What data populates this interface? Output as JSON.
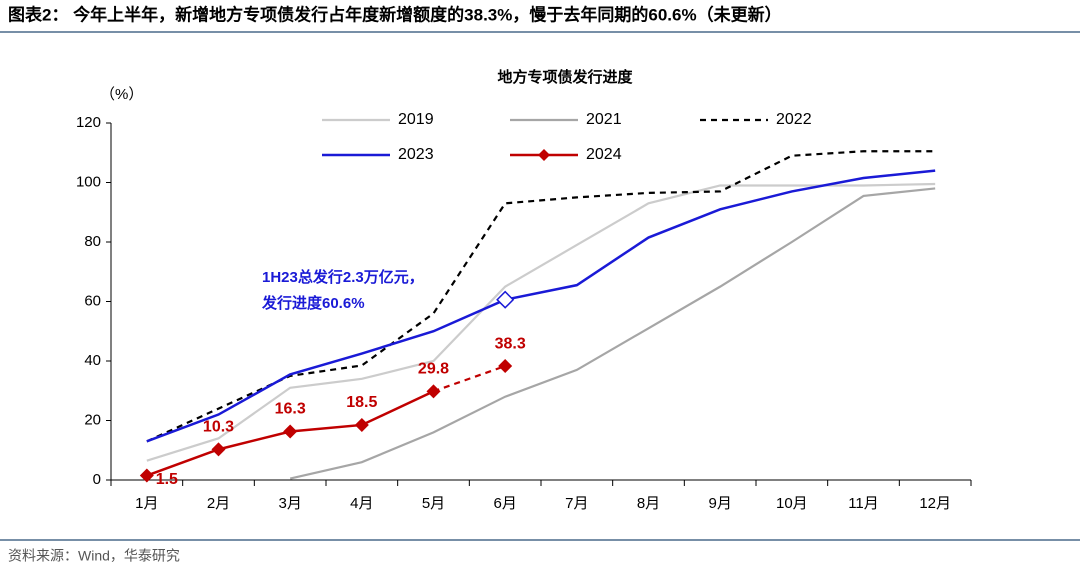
{
  "header": {
    "title": "图表2：  今年上半年，新增地方专项债发行占年度新增额度的38.3%，慢于去年同期的60.6%（未更新）"
  },
  "chart_data": {
    "type": "line",
    "title": "地方专项债发行进度",
    "y_label": "（%）",
    "categories": [
      "1月",
      "2月",
      "3月",
      "4月",
      "5月",
      "6月",
      "7月",
      "8月",
      "9月",
      "10月",
      "11月",
      "12月"
    ],
    "ylim": [
      0,
      120
    ],
    "yticks": [
      0,
      20,
      40,
      60,
      80,
      100,
      120
    ],
    "series": [
      {
        "name": "2019",
        "color": "#cccccc",
        "values": [
          6.5,
          14,
          31,
          34,
          40,
          65,
          79,
          93,
          99,
          99,
          99,
          99.5
        ]
      },
      {
        "name": "2021",
        "color": "#a6a6a6",
        "values": [
          null,
          null,
          0.5,
          6,
          16,
          28,
          37,
          51,
          65,
          80,
          95.5,
          98
        ]
      },
      {
        "name": "2022",
        "color": "#000000",
        "dash": true,
        "values": [
          13,
          24,
          35,
          38.5,
          56,
          93,
          95,
          96.5,
          97,
          109,
          110.5,
          110.5
        ]
      },
      {
        "name": "2023",
        "color": "#1a1ad6",
        "highlight": 5,
        "values": [
          13,
          22,
          35.5,
          42.5,
          50,
          60.6,
          65.5,
          81.5,
          91,
          97,
          101.5,
          104
        ]
      },
      {
        "name": "2024",
        "color": "#c00000",
        "markers": true,
        "labels": true,
        "dashed_from": 4,
        "values": [
          1.5,
          10.3,
          16.3,
          18.5,
          29.8,
          38.3,
          null,
          null,
          null,
          null,
          null,
          null
        ]
      }
    ],
    "annotation": [
      "1H23总发行2.3万亿元，",
      "发行进度60.6%"
    ]
  },
  "footer": {
    "source": "资料来源：Wind，华泰研究"
  }
}
